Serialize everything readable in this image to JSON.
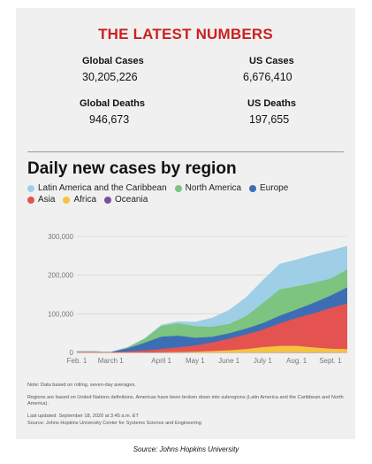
{
  "headline": "THE LATEST NUMBERS",
  "stats": {
    "global_cases_label": "Global Cases",
    "global_cases_value": "30,205,226",
    "us_cases_label": "US Cases",
    "us_cases_value": "6,676,410",
    "global_deaths_label": "Global Deaths",
    "global_deaths_value": "946,673",
    "us_deaths_label": "US Deaths",
    "us_deaths_value": "197,655"
  },
  "chart_title": "Daily new cases by region",
  "legend": [
    {
      "name": "Latin America and the Caribbean",
      "color": "#9fcfe6"
    },
    {
      "name": "North America",
      "color": "#7cc47f"
    },
    {
      "name": "Europe",
      "color": "#3d6eb5"
    },
    {
      "name": "Asia",
      "color": "#e4534f"
    },
    {
      "name": "Africa",
      "color": "#f5c242"
    },
    {
      "name": "Oceania",
      "color": "#7b4fa0"
    }
  ],
  "notes": {
    "line1": "Note: Data based on rolling, seven-day averages.",
    "line2": "Regions are based on United Nations definitions. Americas have been broken down into subregions (Latin America and the Caribbean and North America).",
    "line3": "Last updated: September 18, 2020 at 3:45 a.m. ET",
    "line4": "Source: Johns Hopkins University Center for Systems Science and Engineering"
  },
  "source_caption": "Source: Johns Hopkins University",
  "chart_data": {
    "type": "area",
    "stacked": true,
    "x": [
      "Feb. 1",
      "Feb. 15",
      "Mar. 1",
      "Mar. 15",
      "Mar. 22",
      "Apr. 1",
      "Apr. 15",
      "May 1",
      "May 15",
      "Jun. 1",
      "Jun. 15",
      "Jul. 1",
      "Jul. 15",
      "Aug. 1",
      "Aug. 15",
      "Sept. 1",
      "Sept. 17"
    ],
    "x_tick_labels": [
      "Feb. 1",
      "March 1",
      "April 1",
      "May 1",
      "June 1",
      "July 1",
      "Aug. 1",
      "Sept. 1"
    ],
    "x_tick_positions": [
      0,
      2,
      5,
      7,
      9,
      11,
      13,
      15
    ],
    "series": [
      {
        "name": "Oceania",
        "color": "#7b4fa0",
        "values": [
          0,
          0,
          0,
          100,
          200,
          400,
          200,
          50,
          20,
          20,
          50,
          300,
          500,
          600,
          400,
          200,
          100
        ]
      },
      {
        "name": "Africa",
        "color": "#f5c242",
        "values": [
          0,
          0,
          0,
          100,
          300,
          800,
          1500,
          2500,
          4000,
          6000,
          9000,
          14000,
          17000,
          17000,
          13000,
          10000,
          9000
        ]
      },
      {
        "name": "Asia",
        "color": "#e4534f",
        "values": [
          2000,
          2000,
          1000,
          3000,
          5000,
          8000,
          12000,
          16000,
          22000,
          30000,
          38000,
          45000,
          58000,
          72000,
          88000,
          105000,
          118000
        ]
      },
      {
        "name": "Europe",
        "color": "#3d6eb5",
        "values": [
          0,
          0,
          100,
          8000,
          20000,
          32000,
          30000,
          20000,
          15000,
          14000,
          15000,
          17000,
          20000,
          22000,
          27000,
          32000,
          42000
        ]
      },
      {
        "name": "North America",
        "color": "#7cc47f",
        "values": [
          0,
          0,
          0,
          2000,
          10000,
          28000,
          32000,
          30000,
          26000,
          24000,
          32000,
          52000,
          68000,
          60000,
          52000,
          44000,
          46000
        ]
      },
      {
        "name": "Latin America and the Caribbean",
        "color": "#9fcfe6",
        "values": [
          0,
          0,
          0,
          200,
          500,
          2000,
          4000,
          10000,
          22000,
          35000,
          48000,
          58000,
          65000,
          68000,
          72000,
          72000,
          60000
        ]
      }
    ],
    "ylim": [
      0,
      300000
    ],
    "y_ticks": [
      0,
      100000,
      200000,
      300000
    ],
    "y_tick_labels": [
      "0",
      "100,000",
      "200,000",
      "300,000"
    ],
    "grid": true
  }
}
